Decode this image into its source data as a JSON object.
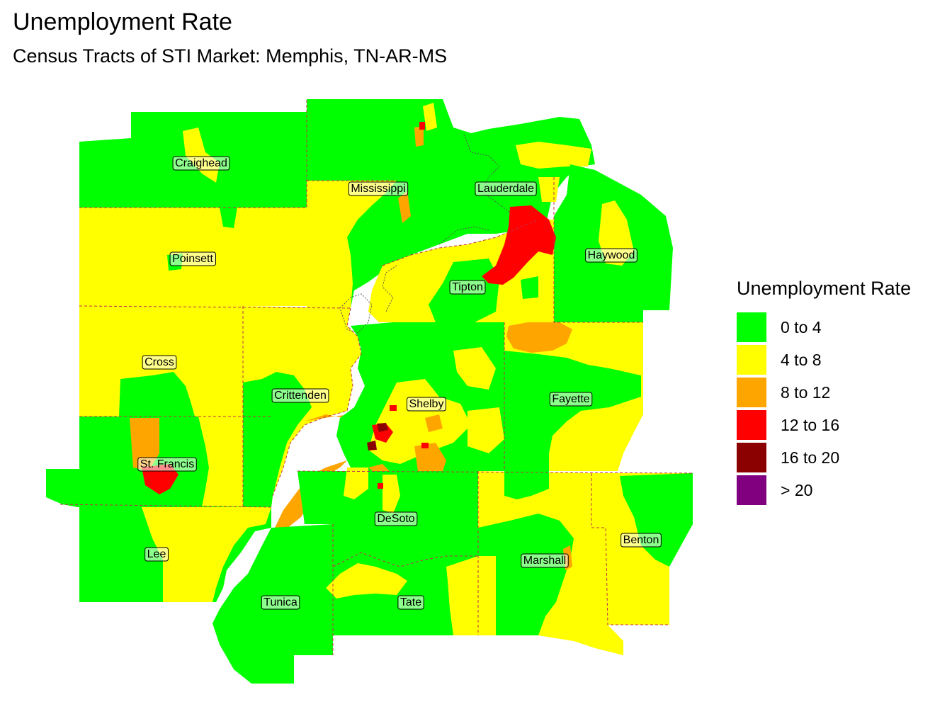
{
  "title": "Unemployment Rate",
  "subtitle": "Census Tracts of STI Market: Memphis, TN-AR-MS",
  "legend": {
    "title": "Unemployment Rate",
    "items": [
      {
        "label": "0 to 4",
        "color": "#00ff00"
      },
      {
        "label": "4 to 8",
        "color": "#ffff00"
      },
      {
        "label": "8 to 12",
        "color": "#ffa500"
      },
      {
        "label": "12 to 16",
        "color": "#ff0000"
      },
      {
        "label": "16 to 20",
        "color": "#8b0000"
      },
      {
        "label": "> 20",
        "color": "#800080"
      }
    ]
  },
  "counties": [
    "Craighead",
    "Mississippi",
    "Lauderdale",
    "Poinsett",
    "Haywood",
    "Tipton",
    "Cross",
    "Crittenden",
    "Shelby",
    "Fayette",
    "St. Francis",
    "DeSoto",
    "Benton",
    "Lee",
    "Marshall",
    "Tunica",
    "Tate"
  ]
}
